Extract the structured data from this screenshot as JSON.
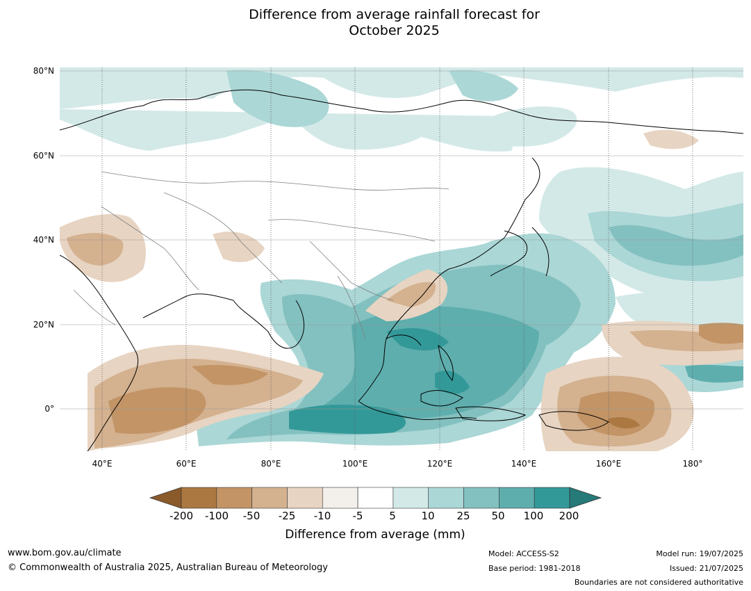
{
  "title": {
    "line1": "Difference from average rainfall forecast for",
    "line2": "October 2025"
  },
  "map": {
    "lat_labels": [
      "80°N",
      "60°N",
      "40°N",
      "20°N",
      "0°"
    ],
    "lon_labels": [
      "40°E",
      "60°E",
      "80°E",
      "100°E",
      "120°E",
      "140°E",
      "160°E",
      "180°"
    ],
    "extent": {
      "lon": [
        30,
        192
      ],
      "lat": [
        -10,
        81
      ]
    }
  },
  "legend": {
    "ticks": [
      "-200",
      "-100",
      "-50",
      "-25",
      "-10",
      "-5",
      "5",
      "10",
      "25",
      "50",
      "100",
      "200"
    ],
    "colors": [
      "#ac7841",
      "#c29466",
      "#d4b18f",
      "#e7d4c2",
      "#f3efea",
      "#ffffff",
      "#d3e9e8",
      "#abd7d6",
      "#83c1c0",
      "#5eaead",
      "#339998"
    ],
    "under_color": "#8b5a2b",
    "over_color": "#267a78",
    "label": "Difference from average (mm)"
  },
  "footer": {
    "website": "www.bom.gov.au/climate",
    "copyright": "© Commonwealth of Australia 2025, Australian Bureau of Meteorology",
    "model": "Model: ACCESS-S2",
    "base_period": "Base period: 1981-2018",
    "model_run": "Model run: 19/07/2025",
    "issued": "Issued: 21/07/2025",
    "disclaimer": "Boundaries are not considered authoritative"
  }
}
